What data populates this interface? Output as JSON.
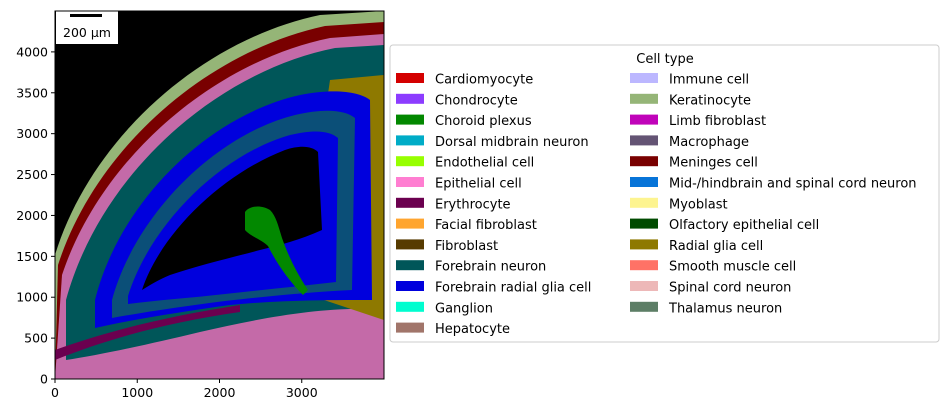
{
  "chart_data": {
    "type": "heatmap",
    "title": "",
    "xlabel": "",
    "ylabel": "",
    "xlim": [
      0,
      4000
    ],
    "ylim": [
      0,
      4500
    ],
    "xticks": [
      0,
      1000,
      2000,
      3000
    ],
    "yticks": [
      0,
      500,
      1000,
      1500,
      2000,
      2500,
      3000,
      3500,
      4000
    ],
    "scalebar": {
      "label": "200 µm",
      "length_data_units": 200
    },
    "legend": {
      "title": "Cell type",
      "placement": "right",
      "columns": 2,
      "entries": [
        {
          "label": "Cardiomyocyte",
          "color": "#d40000"
        },
        {
          "label": "Chondrocyte",
          "color": "#8c3cff"
        },
        {
          "label": "Choroid plexus",
          "color": "#028800"
        },
        {
          "label": "Dorsal midbrain neuron",
          "color": "#00acc7"
        },
        {
          "label": "Endothelial cell",
          "color": "#97ff00"
        },
        {
          "label": "Epithelial cell",
          "color": "#ff7ed1"
        },
        {
          "label": "Erythrocyte",
          "color": "#6b004f"
        },
        {
          "label": "Facial fibroblast",
          "color": "#ffa52f"
        },
        {
          "label": "Fibroblast",
          "color": "#573b00"
        },
        {
          "label": "Forebrain neuron",
          "color": "#005659"
        },
        {
          "label": "Forebrain radial glia cell",
          "color": "#0000dd"
        },
        {
          "label": "Ganglion",
          "color": "#00fdcf"
        },
        {
          "label": "Hepatocyte",
          "color": "#a1756a"
        },
        {
          "label": "Immune cell",
          "color": "#bcb7ff"
        },
        {
          "label": "Keratinocyte",
          "color": "#95b577"
        },
        {
          "label": "Limb fibroblast",
          "color": "#c004b9"
        },
        {
          "label": "Macrophage",
          "color": "#645474"
        },
        {
          "label": "Meninges cell",
          "color": "#790000"
        },
        {
          "label": "Mid-/hindbrain and spinal cord neuron",
          "color": "#0774d8"
        },
        {
          "label": "Myoblast",
          "color": "#fdf490"
        },
        {
          "label": "Olfactory epithelial cell",
          "color": "#004b00"
        },
        {
          "label": "Radial glia cell",
          "color": "#8e7900"
        },
        {
          "label": "Smooth muscle cell",
          "color": "#ff7266"
        },
        {
          "label": "Spinal cord neuron",
          "color": "#edb8b8"
        },
        {
          "label": "Thalamus neuron",
          "color": "#5d7e66"
        }
      ]
    }
  }
}
